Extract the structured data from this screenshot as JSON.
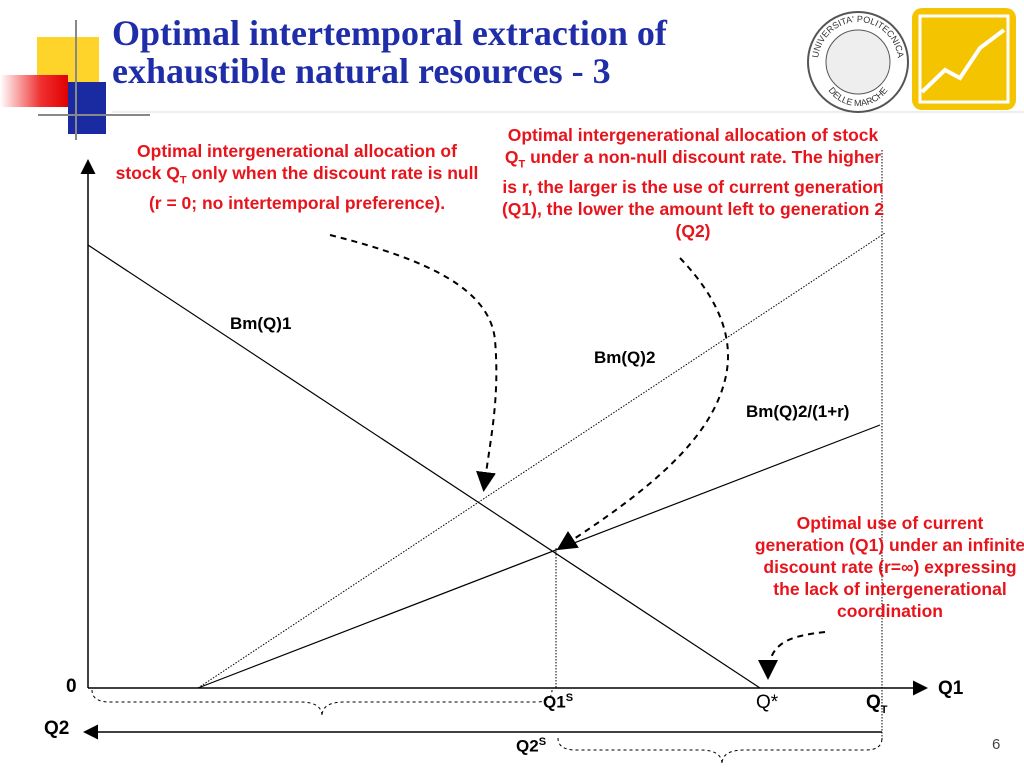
{
  "title": {
    "lines": [
      "Optimal intertemporal extraction of",
      "exhaustible natural resources - 3"
    ]
  },
  "annotations": {
    "equal_allocation": {
      "before": "Optimal intergenerational allocation of stock Q",
      "sub": "T",
      "after": " only when the discount rate is null (r = 0; no intertemporal preference)."
    },
    "discounted_allocation": {
      "before": "Optimal intergenerational allocation of stock Q",
      "sub": "T",
      "after": " under a non-null discount rate. The higher is r, the larger is the use of current generation (Q1), the lower the amount left to generation 2 (Q2)"
    },
    "infinite_rate": "Optimal use of current generation (Q1) under an infinite discount rate (r=∞) expressing the lack of intergenerational coordination"
  },
  "curves": {
    "bm1": "Bm(Q)1",
    "bm2": "Bm(Q)2",
    "bm2_discounted": "Bm(Q)2/(1+r)"
  },
  "axes": {
    "origin": "0",
    "x_label": "Q1",
    "q2_label": "Q2"
  },
  "points": {
    "q1s": {
      "base": "Q1",
      "sup": "S"
    },
    "q_star": "Q*",
    "q_t": {
      "base": "Q",
      "sub": "T"
    },
    "q2s": {
      "base": "Q2",
      "sup": "S"
    }
  },
  "logo": {
    "top": "UNIVERSITA' POLITECNICA",
    "bottom": "DELLE MARCHE"
  },
  "slide_number": "6"
}
